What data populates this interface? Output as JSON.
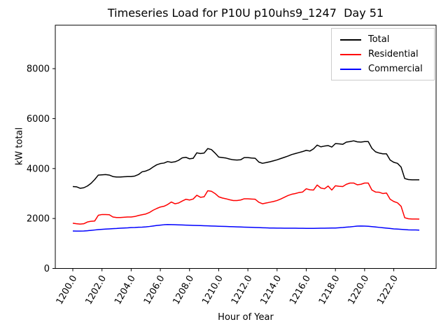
{
  "window": {
    "background": "#ffffff"
  },
  "chart_data": {
    "type": "line",
    "title": "Timeseries Load for P10U p10uhs9_1247  Day 51",
    "xlabel": "Hour of Year",
    "ylabel": "kW total",
    "xlim": [
      1198.8,
      1224.9
    ],
    "ylim": [
      0,
      9740
    ],
    "xticks": [
      1200,
      1202,
      1204,
      1206,
      1208,
      1210,
      1212,
      1214,
      1216,
      1218,
      1220,
      1222
    ],
    "xtick_label_format": "one_decimal",
    "xtick_rotation_deg": 60,
    "yticks": [
      0,
      2000,
      4000,
      6000,
      8000
    ],
    "grid": false,
    "legend_position": "upper right",
    "x_start": 1200.0,
    "x_step": 0.25,
    "x": [
      1200.0,
      1200.25,
      1200.5,
      1200.75,
      1201.0,
      1201.25,
      1201.5,
      1201.75,
      1202.0,
      1202.25,
      1202.5,
      1202.75,
      1203.0,
      1203.25,
      1203.5,
      1203.75,
      1204.0,
      1204.25,
      1204.5,
      1204.75,
      1205.0,
      1205.25,
      1205.5,
      1205.75,
      1206.0,
      1206.25,
      1206.5,
      1206.75,
      1207.0,
      1207.25,
      1207.5,
      1207.75,
      1208.0,
      1208.25,
      1208.5,
      1208.75,
      1209.0,
      1209.25,
      1209.5,
      1209.75,
      1210.0,
      1210.25,
      1210.5,
      1210.75,
      1211.0,
      1211.25,
      1211.5,
      1211.75,
      1212.0,
      1212.25,
      1212.5,
      1212.75,
      1213.0,
      1213.25,
      1213.5,
      1213.75,
      1214.0,
      1214.25,
      1214.5,
      1214.75,
      1215.0,
      1215.25,
      1215.5,
      1215.75,
      1216.0,
      1216.25,
      1216.5,
      1216.75,
      1217.0,
      1217.25,
      1217.5,
      1217.75,
      1218.0,
      1218.25,
      1218.5,
      1218.75,
      1219.0,
      1219.25,
      1219.5,
      1219.75,
      1220.0,
      1220.25,
      1220.5,
      1220.75,
      1221.0,
      1221.25,
      1221.5,
      1221.75,
      1222.0,
      1222.25,
      1222.5,
      1222.75,
      1223.0,
      1223.25,
      1223.5,
      1223.75
    ],
    "series": [
      {
        "name": "Total",
        "color": "#000000",
        "values": [
          3280,
          3270,
          3210,
          3230,
          3300,
          3410,
          3560,
          3740,
          3750,
          3760,
          3740,
          3680,
          3660,
          3660,
          3670,
          3680,
          3680,
          3700,
          3760,
          3870,
          3900,
          3960,
          4060,
          4150,
          4200,
          4220,
          4280,
          4250,
          4270,
          4330,
          4430,
          4450,
          4390,
          4410,
          4630,
          4600,
          4620,
          4800,
          4760,
          4620,
          4460,
          4440,
          4420,
          4380,
          4350,
          4340,
          4350,
          4440,
          4440,
          4420,
          4410,
          4260,
          4210,
          4240,
          4270,
          4310,
          4350,
          4400,
          4450,
          4500,
          4560,
          4600,
          4640,
          4680,
          4730,
          4700,
          4790,
          4940,
          4870,
          4900,
          4920,
          4860,
          5000,
          4990,
          4970,
          5060,
          5080,
          5110,
          5070,
          5060,
          5080,
          5080,
          4810,
          4670,
          4620,
          4590,
          4590,
          4340,
          4250,
          4210,
          4060,
          3600,
          3560,
          3550,
          3550,
          3550
        ]
      },
      {
        "name": "Residential",
        "color": "#ff0000",
        "values": [
          1810,
          1790,
          1775,
          1790,
          1860,
          1890,
          1900,
          2130,
          2160,
          2160,
          2150,
          2060,
          2040,
          2040,
          2050,
          2060,
          2060,
          2080,
          2120,
          2150,
          2180,
          2240,
          2330,
          2400,
          2460,
          2490,
          2560,
          2660,
          2590,
          2620,
          2700,
          2770,
          2740,
          2780,
          2930,
          2850,
          2870,
          3110,
          3090,
          3000,
          2870,
          2820,
          2790,
          2750,
          2720,
          2720,
          2740,
          2790,
          2790,
          2780,
          2770,
          2650,
          2590,
          2620,
          2650,
          2680,
          2720,
          2780,
          2850,
          2920,
          2970,
          3000,
          3040,
          3060,
          3190,
          3150,
          3140,
          3340,
          3220,
          3190,
          3300,
          3140,
          3310,
          3290,
          3280,
          3370,
          3420,
          3420,
          3350,
          3370,
          3420,
          3420,
          3140,
          3060,
          3050,
          3000,
          3020,
          2770,
          2680,
          2630,
          2490,
          2030,
          1990,
          1980,
          1980,
          1975
        ]
      },
      {
        "name": "Commercial",
        "color": "#0000ff",
        "values": [
          1500,
          1495,
          1495,
          1500,
          1510,
          1525,
          1540,
          1555,
          1565,
          1575,
          1585,
          1595,
          1600,
          1610,
          1620,
          1625,
          1635,
          1640,
          1650,
          1655,
          1665,
          1680,
          1700,
          1720,
          1735,
          1750,
          1760,
          1755,
          1750,
          1745,
          1740,
          1735,
          1730,
          1725,
          1720,
          1715,
          1710,
          1705,
          1700,
          1695,
          1690,
          1685,
          1680,
          1675,
          1670,
          1665,
          1660,
          1655,
          1650,
          1645,
          1640,
          1635,
          1630,
          1625,
          1620,
          1618,
          1615,
          1615,
          1612,
          1612,
          1610,
          1610,
          1608,
          1608,
          1605,
          1605,
          1605,
          1608,
          1610,
          1612,
          1615,
          1618,
          1620,
          1630,
          1640,
          1655,
          1665,
          1680,
          1695,
          1700,
          1695,
          1690,
          1675,
          1660,
          1645,
          1630,
          1615,
          1600,
          1585,
          1575,
          1565,
          1555,
          1545,
          1540,
          1540,
          1535
        ]
      }
    ]
  }
}
